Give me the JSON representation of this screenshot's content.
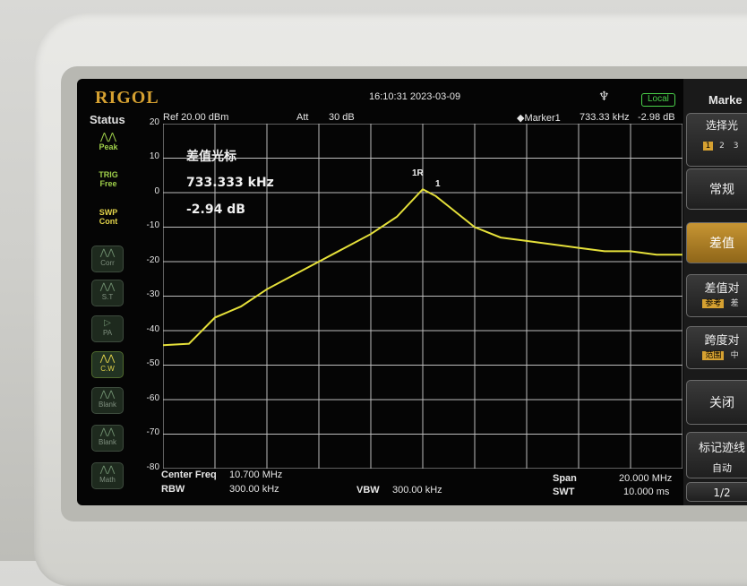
{
  "brand": "RIGOL",
  "status_title": "Status",
  "datetime": "16:10:31 2023-03-09",
  "usb_icon": "usb-icon",
  "local_badge": "Local",
  "header": {
    "ref": "Ref 20.00 dBm",
    "att_label": "Att",
    "att_value": "30 dB",
    "marker_label": "◆Marker1",
    "marker_freq": "733.33 kHz",
    "marker_amp": "-2.98 dB"
  },
  "left_status": [
    {
      "label": "Peak",
      "icon": "peak-icon",
      "color": "#9fd04a"
    },
    {
      "label": "TRIG\nFree",
      "icon": "",
      "color": "#9fd04a"
    },
    {
      "label": "SWP\nCont",
      "icon": "",
      "color": "#e2d34a"
    }
  ],
  "left_buttons": [
    {
      "label": "Corr",
      "icon": "corr-icon",
      "active": false
    },
    {
      "label": "S.T",
      "icon": "st-icon",
      "active": false
    },
    {
      "label": "PA",
      "icon": "pa-icon",
      "active": false
    },
    {
      "label": "C.W",
      "icon": "cw-icon",
      "active": true
    },
    {
      "label": "Blank",
      "icon": "blank-icon",
      "active": false
    },
    {
      "label": "Blank",
      "icon": "blank-icon",
      "active": false
    },
    {
      "label": "Math",
      "icon": "math-icon",
      "active": false
    }
  ],
  "delta_marker": {
    "title": "差值光标",
    "freq": "733.333 kHz",
    "amp": "-2.94 dB"
  },
  "marker_labels": {
    "ref": "1R",
    "delta": "1"
  },
  "y_ticks": [
    "20",
    "10",
    "0",
    "-10",
    "-20",
    "-30",
    "-40",
    "-50",
    "-60",
    "-70",
    "-80"
  ],
  "bottom": {
    "center_label": "Center Freq",
    "center_value": "10.700 MHz",
    "rbw_label": "RBW",
    "rbw_value": "300.00 kHz",
    "vbw_label": "VBW",
    "vbw_value": "300.00 kHz",
    "span_label": "Span",
    "span_value": "20.000 MHz",
    "swt_label": "SWT",
    "swt_value": "10.000 ms"
  },
  "right_panel": {
    "title": "Marke",
    "select_label": "选择光",
    "select_options": [
      "1",
      "2",
      "3"
    ],
    "normal": "常规",
    "delta": "差值",
    "delta_pair_label": "差值对",
    "delta_pair_opts": [
      "参考",
      "差"
    ],
    "span_pair_label": "跨度对",
    "span_pair_opts": [
      "范围",
      "中"
    ],
    "off": "关闭",
    "trace_label": "标记迹线",
    "trace_value": "自动",
    "page": "1/2"
  },
  "chart_data": {
    "type": "line",
    "series": [
      {
        "x": [
          -10,
          -9,
          -8,
          -7,
          -6,
          -5,
          -4,
          -3,
          -2,
          -1,
          0,
          0.5,
          1,
          2,
          3,
          4,
          5,
          6,
          7,
          8,
          9,
          10
        ],
        "y": [
          -45,
          -43,
          -37,
          -33,
          -28,
          -24,
          -20,
          -16,
          -12,
          -7,
          1,
          -1,
          -4,
          -10,
          -13,
          -14,
          -15,
          -16,
          -17,
          -17,
          -18,
          -18
        ]
      }
    ],
    "xlim": [
      -10,
      10
    ],
    "ylim": [
      -80,
      20
    ],
    "grid": true,
    "color": "#e5e03a"
  }
}
